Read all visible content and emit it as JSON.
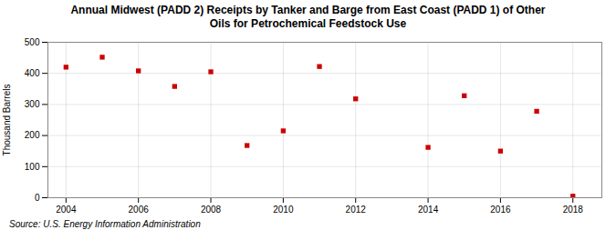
{
  "chart_data": {
    "type": "scatter",
    "title": "Annual Midwest (PADD 2) Receipts by Tanker and Barge from East Coast (PADD 1) of Other\nOils for Petrochemical Feedstock Use",
    "ylabel": "Thousand Barrels",
    "annotation": "Source: U.S. Energy Information Administration",
    "x": [
      2004,
      2005,
      2006,
      2007,
      2008,
      2009,
      2010,
      2011,
      2012,
      2014,
      2015,
      2016,
      2017,
      2018
    ],
    "values": [
      420,
      452,
      408,
      358,
      405,
      168,
      215,
      422,
      318,
      162,
      328,
      150,
      278,
      5
    ],
    "color": "#cc0000",
    "marker": "square",
    "xlim": [
      2003.5,
      2018.8
    ],
    "xticks": [
      2004,
      2006,
      2008,
      2010,
      2012,
      2014,
      2016,
      2018
    ],
    "ylim": [
      0,
      500
    ],
    "yticks": [
      0,
      100,
      200,
      300,
      400,
      500
    ],
    "grid": true
  }
}
